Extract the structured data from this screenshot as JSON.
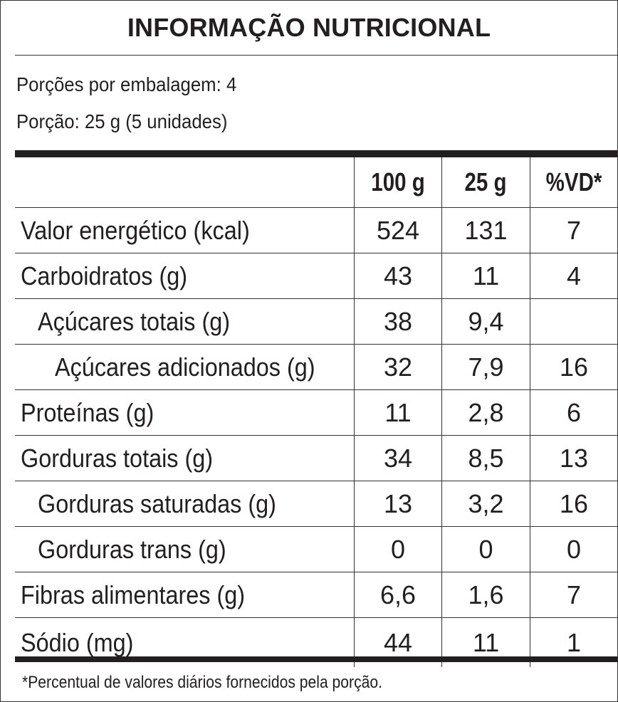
{
  "title": "INFORMAÇÃO NUTRICIONAL",
  "serving": {
    "per_package": "Porções por embalagem: 4",
    "portion": "Porção: 25 g (5 unidades)"
  },
  "columns": [
    "",
    "100 g",
    "25 g",
    "%VD*"
  ],
  "rows": [
    {
      "label": "Valor energético (kcal)",
      "v100": "524",
      "v25": "131",
      "vd": "7",
      "level": 0
    },
    {
      "label": "Carboidratos (g)",
      "v100": "43",
      "v25": "11",
      "vd": "4",
      "level": 0
    },
    {
      "label": "Açúcares totais (g)",
      "v100": "38",
      "v25": "9,4",
      "vd": "",
      "level": 1
    },
    {
      "label": "Açúcares adicionados (g)",
      "v100": "32",
      "v25": "7,9",
      "vd": "16",
      "level": 2
    },
    {
      "label": "Proteínas (g)",
      "v100": "11",
      "v25": "2,8",
      "vd": "6",
      "level": 0
    },
    {
      "label": "Gorduras totais (g)",
      "v100": "34",
      "v25": "8,5",
      "vd": "13",
      "level": 0
    },
    {
      "label": "Gorduras saturadas (g)",
      "v100": "13",
      "v25": "3,2",
      "vd": "16",
      "level": 1
    },
    {
      "label": "Gorduras trans (g)",
      "v100": "0",
      "v25": "0",
      "vd": "0",
      "level": 1
    },
    {
      "label": "Fibras alimentares (g)",
      "v100": "6,6",
      "v25": "1,6",
      "vd": "7",
      "level": 0
    },
    {
      "label": "Sódio (mg)",
      "v100": "44",
      "v25": "11",
      "vd": "1",
      "level": 0
    }
  ],
  "footnote": "*Percentual de valores diários fornecidos pela porção."
}
